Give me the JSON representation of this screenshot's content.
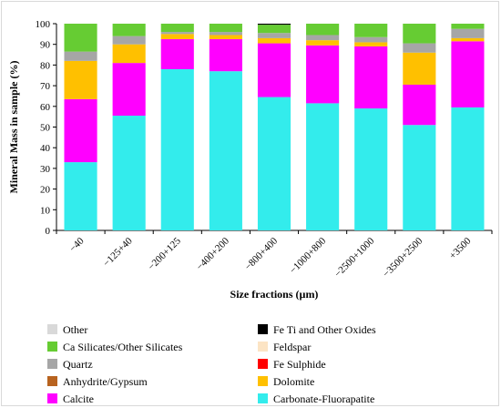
{
  "chart_data": {
    "type": "bar",
    "stacked": true,
    "xlabel": "Size fractions (µm)",
    "ylabel": "Mineral Mass in sample (%)",
    "ylim": [
      0,
      100
    ],
    "yticks": [
      0,
      10,
      20,
      30,
      40,
      50,
      60,
      70,
      80,
      90,
      100
    ],
    "grid": false,
    "legend_position": "bottom",
    "categories": [
      "−40",
      "−125+40",
      "−200+125",
      "−400+200",
      "−800+400",
      "−1000+800",
      "−2500+1000",
      "−3500+2500",
      "+3500"
    ],
    "series": [
      {
        "name": "Carbonate-Fluorapatite",
        "color": "#33ecec",
        "values": [
          33,
          55.5,
          78,
          77,
          64.5,
          61.5,
          59,
          51,
          59.5
        ]
      },
      {
        "name": "Calcite",
        "color": "#ff00ff",
        "values": [
          30.5,
          25.5,
          14.5,
          15.5,
          26,
          28,
          30,
          19.5,
          32
        ]
      },
      {
        "name": "Dolomite",
        "color": "#ffc000",
        "values": [
          18.5,
          9,
          2.5,
          2,
          2.5,
          2.5,
          2,
          15.5,
          1.5
        ]
      },
      {
        "name": "Anhydrite/Gypsum",
        "color": "#b8631f",
        "values": [
          0,
          0,
          0,
          0,
          0,
          0,
          0,
          0,
          0
        ]
      },
      {
        "name": "Fe Sulphide",
        "color": "#ff0000",
        "values": [
          0,
          0,
          0,
          0,
          0,
          0,
          0,
          0,
          0
        ]
      },
      {
        "name": "Quartz",
        "color": "#a6a6a6",
        "values": [
          4.5,
          4,
          1,
          1.5,
          2.5,
          2.5,
          2.5,
          4.5,
          4.5
        ]
      },
      {
        "name": "Feldspar",
        "color": "#fce4c4",
        "values": [
          0,
          0,
          0,
          0,
          0,
          0,
          0,
          0,
          0
        ]
      },
      {
        "name": "Ca Silicates/Other Silicates",
        "color": "#66cc33",
        "values": [
          13.5,
          6,
          4,
          4,
          4,
          5.5,
          6.5,
          9.5,
          2.5
        ]
      },
      {
        "name": "Fe Ti and Other Oxides",
        "color": "#000000",
        "values": [
          0,
          0,
          0,
          0,
          0.5,
          0,
          0,
          0,
          0
        ]
      },
      {
        "name": "Other",
        "color": "#d9d9d9",
        "values": [
          0,
          0,
          0,
          0,
          0,
          0,
          0,
          0,
          0
        ]
      }
    ],
    "legend": [
      [
        "Other",
        "Fe Ti and Other Oxides"
      ],
      [
        "Ca Silicates/Other Silicates",
        "Feldspar"
      ],
      [
        "Quartz",
        "Fe Sulphide"
      ],
      [
        "Anhydrite/Gypsum",
        "Dolomite"
      ],
      [
        "Calcite",
        "Carbonate-Fluorapatite"
      ]
    ]
  }
}
